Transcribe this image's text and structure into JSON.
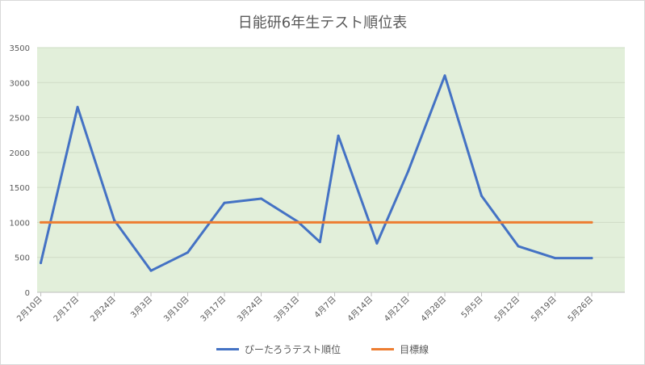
{
  "chart_data": {
    "type": "line",
    "title": "日能研6年生テスト順位表",
    "categories": [
      "2月10日",
      "2月17日",
      "2月24日",
      "3月3日",
      "3月10日",
      "3月17日",
      "3月24日",
      "3月31日",
      "4月7日",
      "4月14日",
      "4月21日",
      "4月28日",
      "5月5日",
      "5月12日",
      "5月19日",
      "5月26日"
    ],
    "ylim": [
      0,
      3500
    ],
    "yticks": [
      0,
      500,
      1000,
      1500,
      2000,
      2500,
      3000,
      3500
    ],
    "grid": true,
    "legend_position": "bottom",
    "plot_background": "#e2efda",
    "series": [
      {
        "name": "ぴーたろうテスト順位",
        "color": "#4472c4",
        "points": [
          {
            "x": 0,
            "y": 420
          },
          {
            "x": 1,
            "y": 2650
          },
          {
            "x": 2,
            "y": 1030
          },
          {
            "x": 3,
            "y": 310
          },
          {
            "x": 4,
            "y": 570
          },
          {
            "x": 5,
            "y": 1280
          },
          {
            "x": 6,
            "y": 1340
          },
          {
            "x": 7,
            "y": 1010
          },
          {
            "x": 7.6,
            "y": 720
          },
          {
            "x": 8.1,
            "y": 2240
          },
          {
            "x": 9.15,
            "y": 700
          },
          {
            "x": 10,
            "y": 1730
          },
          {
            "x": 11,
            "y": 3100
          },
          {
            "x": 12,
            "y": 1380
          },
          {
            "x": 13,
            "y": 660
          },
          {
            "x": 14,
            "y": 490
          },
          {
            "x": 15,
            "y": 490
          }
        ]
      },
      {
        "name": "目標線",
        "color": "#ed7d31",
        "points": [
          {
            "x": 0,
            "y": 1000
          },
          {
            "x": 15,
            "y": 1000
          }
        ]
      }
    ]
  }
}
